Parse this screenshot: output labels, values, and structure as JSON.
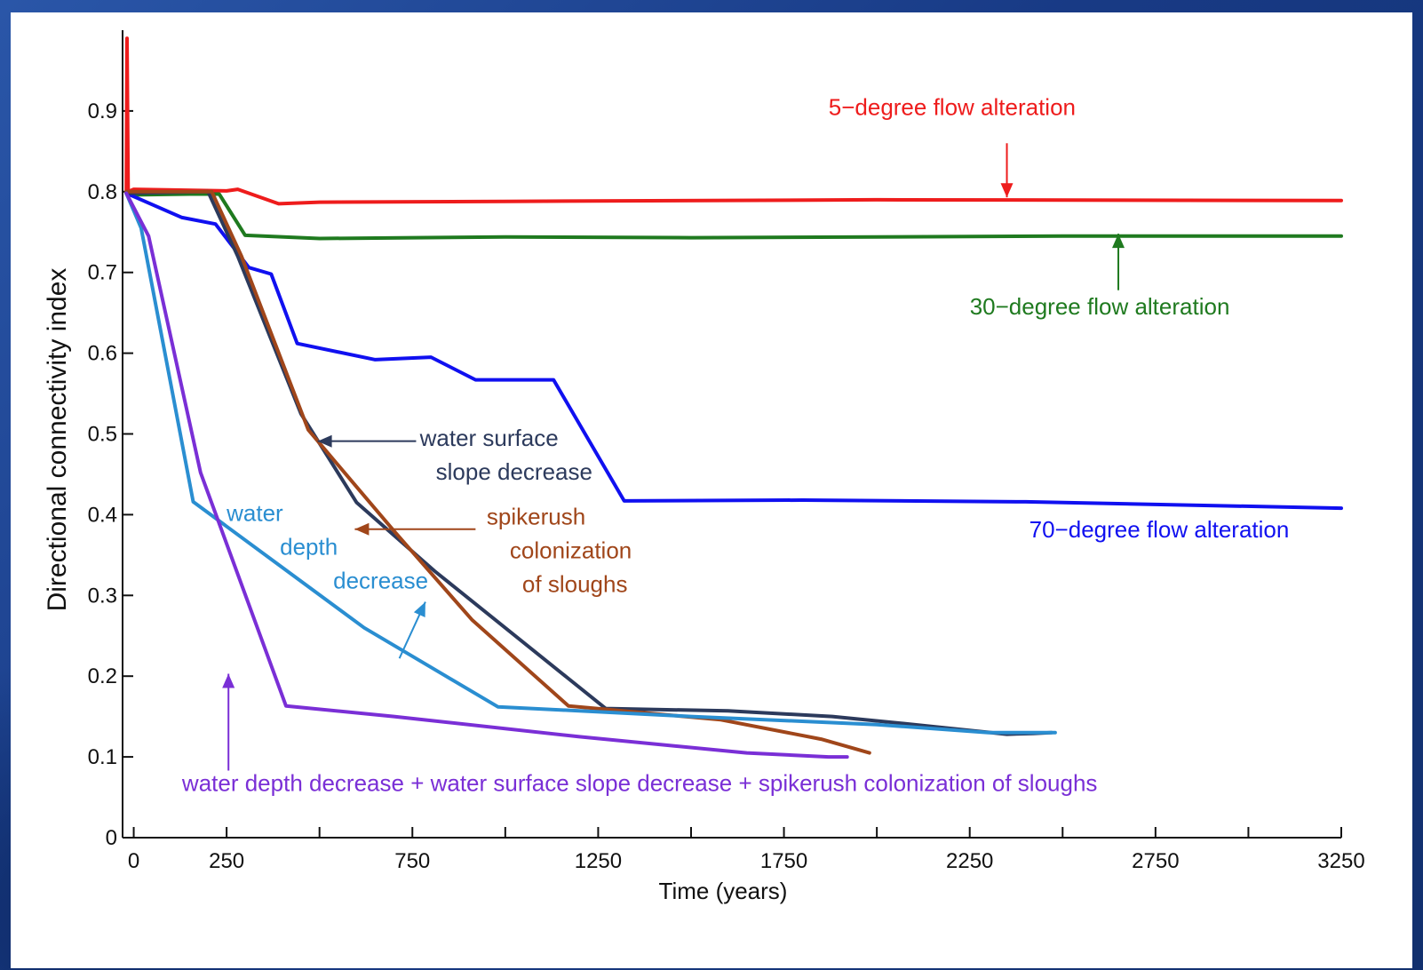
{
  "chart_data": {
    "type": "line",
    "title": "",
    "xlabel": "Time (years)",
    "ylabel": "Directional connectivity index",
    "xlim": [
      -30,
      3250
    ],
    "ylim": [
      0,
      1.0
    ],
    "x_ticks_labeled": [
      0,
      250,
      750,
      1250,
      1750,
      2250,
      2750,
      3250
    ],
    "x_ticks_minor": [
      500,
      1000,
      1500,
      2000,
      2500,
      3000
    ],
    "y_ticks": [
      {
        "value": 0,
        "label": "0"
      },
      {
        "value": 0.1,
        "label": "0.1"
      },
      {
        "value": 0.2,
        "label": "0.2"
      },
      {
        "value": 0.3,
        "label": "0.3"
      },
      {
        "value": 0.4,
        "label": "0.4"
      },
      {
        "value": 0.5,
        "label": "0.5"
      },
      {
        "value": 0.6,
        "label": "0.6"
      },
      {
        "value": 0.7,
        "label": "0.7"
      },
      {
        "value": 0.8,
        "label": "0.8"
      },
      {
        "value": 0.9,
        "label": "0.9"
      }
    ],
    "grid": false,
    "legend": "none",
    "series": [
      {
        "label": "5−degree flow alteration",
        "color": "#ee1c1c",
        "points": [
          [
            -20,
            0.8
          ],
          [
            -18,
            0.99
          ],
          [
            -15,
            0.8
          ],
          [
            0,
            0.803
          ],
          [
            250,
            0.801
          ],
          [
            280,
            0.803
          ],
          [
            390,
            0.785
          ],
          [
            500,
            0.787
          ],
          [
            1000,
            0.788
          ],
          [
            2000,
            0.79
          ],
          [
            3250,
            0.789
          ]
        ]
      },
      {
        "label": "30−degree flow alteration",
        "color": "#1f7a1f",
        "points": [
          [
            -20,
            0.8
          ],
          [
            0,
            0.796
          ],
          [
            150,
            0.797
          ],
          [
            230,
            0.797
          ],
          [
            300,
            0.746
          ],
          [
            500,
            0.742
          ],
          [
            1000,
            0.744
          ],
          [
            1500,
            0.743
          ],
          [
            2000,
            0.744
          ],
          [
            2500,
            0.745
          ],
          [
            3250,
            0.745
          ]
        ]
      },
      {
        "label": "70−degree flow alteration",
        "color": "#1010f0",
        "points": [
          [
            -20,
            0.798
          ],
          [
            130,
            0.768
          ],
          [
            220,
            0.76
          ],
          [
            310,
            0.706
          ],
          [
            370,
            0.698
          ],
          [
            440,
            0.612
          ],
          [
            650,
            0.592
          ],
          [
            800,
            0.595
          ],
          [
            920,
            0.567
          ],
          [
            1130,
            0.567
          ],
          [
            1320,
            0.417
          ],
          [
            1800,
            0.418
          ],
          [
            2400,
            0.416
          ],
          [
            3250,
            0.408
          ]
        ]
      },
      {
        "label": "water surface slope decrease",
        "color": "#2c3a5c",
        "points": [
          [
            -20,
            0.798
          ],
          [
            200,
            0.8
          ],
          [
            280,
            0.72
          ],
          [
            450,
            0.525
          ],
          [
            600,
            0.415
          ],
          [
            810,
            0.33
          ],
          [
            1270,
            0.16
          ],
          [
            1600,
            0.157
          ],
          [
            1880,
            0.15
          ],
          [
            2100,
            0.14
          ],
          [
            2350,
            0.128
          ],
          [
            2420,
            0.129
          ],
          [
            2470,
            0.13
          ]
        ]
      },
      {
        "label": "spikerush colonization of sloughs",
        "color": "#a0461a",
        "points": [
          [
            -20,
            0.8
          ],
          [
            210,
            0.8
          ],
          [
            290,
            0.72
          ],
          [
            470,
            0.505
          ],
          [
            700,
            0.38
          ],
          [
            910,
            0.27
          ],
          [
            1170,
            0.163
          ],
          [
            1580,
            0.146
          ],
          [
            1850,
            0.122
          ],
          [
            1980,
            0.105
          ]
        ]
      },
      {
        "label": "water depth decrease",
        "color": "#2a8ed1",
        "points": [
          [
            -20,
            0.798
          ],
          [
            20,
            0.755
          ],
          [
            160,
            0.416
          ],
          [
            620,
            0.26
          ],
          [
            980,
            0.162
          ],
          [
            1500,
            0.15
          ],
          [
            2000,
            0.14
          ],
          [
            2300,
            0.13
          ],
          [
            2480,
            0.13
          ]
        ]
      },
      {
        "label": "water depth decrease + water surface slope decrease + spikerush colonization of sloughs",
        "color": "#7a2fd6",
        "points": [
          [
            -20,
            0.798
          ],
          [
            40,
            0.745
          ],
          [
            180,
            0.452
          ],
          [
            410,
            0.163
          ],
          [
            700,
            0.15
          ],
          [
            1200,
            0.125
          ],
          [
            1650,
            0.105
          ],
          [
            1870,
            0.1
          ],
          [
            1920,
            0.1
          ]
        ]
      }
    ],
    "annotations": [
      {
        "lines": [
          "5−degree flow alteration"
        ],
        "color": "#ee1c1c",
        "align": "start",
        "at": [
          1870,
          0.895
        ],
        "arrow": {
          "from": [
            2350,
            0.86
          ],
          "to": [
            2350,
            0.793
          ]
        }
      },
      {
        "lines": [
          "30−degree flow alteration"
        ],
        "color": "#1f7a1f",
        "align": "start",
        "at": [
          2250,
          0.648
        ],
        "arrow": {
          "from": [
            2650,
            0.678
          ],
          "to": [
            2650,
            0.748
          ]
        }
      },
      {
        "lines": [
          "70−degree flow alteration"
        ],
        "color": "#1010f0",
        "align": "start",
        "at": [
          2410,
          0.372
        ],
        "arrow": null
      },
      {
        "lines": [
          "water surface",
          "slope decrease"
        ],
        "color": "#2c3a5c",
        "align": "start",
        "at": [
          770,
          0.485
        ],
        "arrow": {
          "from": [
            760,
            0.491
          ],
          "to": [
            495,
            0.491
          ]
        }
      },
      {
        "lines": [
          "spikerush",
          "colonization",
          "of sloughs"
        ],
        "color": "#a0461a",
        "align": "start",
        "at": [
          950,
          0.388
        ],
        "arrow": {
          "from": [
            920,
            0.382
          ],
          "to": [
            595,
            0.382
          ]
        }
      },
      {
        "lines": [
          "water",
          "depth",
          "decrease"
        ],
        "color": "#2a8ed1",
        "align": "start",
        "at": [
          250,
          0.392
        ],
        "arrow": {
          "from": [
            715,
            0.222
          ],
          "to": [
            785,
            0.292
          ]
        }
      },
      {
        "lines": [
          "water depth decrease  + water surface slope decrease + spikerush colonization of sloughs"
        ],
        "color": "#7a2fd6",
        "align": "start",
        "at": [
          130,
          0.058
        ],
        "arrow": {
          "from": [
            255,
            0.083
          ],
          "to": [
            255,
            0.203
          ]
        }
      }
    ]
  }
}
